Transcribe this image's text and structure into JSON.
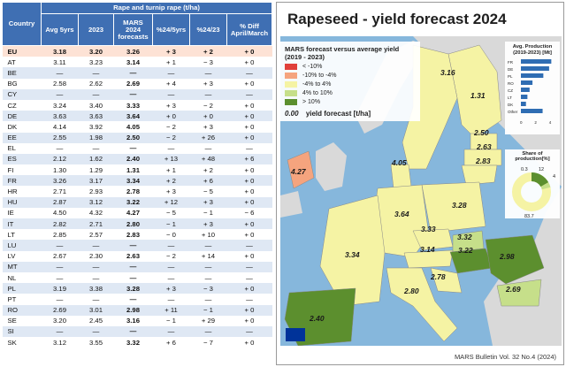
{
  "table": {
    "super_header": "Rape and turnip rape (t/ha)",
    "headers": [
      "Country",
      "Avg 5yrs",
      "2023",
      "MARS\n2024\nforecasts",
      "%24/5yrs",
      "%24/23",
      "% Diff\nApril/March"
    ],
    "rows": [
      [
        "EU",
        "3.18",
        "3.20",
        "3.26",
        "+ 3",
        "+ 2",
        "+ 0"
      ],
      [
        "AT",
        "3.11",
        "3.23",
        "3.14",
        "+ 1",
        "− 3",
        "+ 0"
      ],
      [
        "BE",
        "—",
        "—",
        "—",
        "—",
        "—",
        "—"
      ],
      [
        "BG",
        "2.58",
        "2.62",
        "2.69",
        "+ 4",
        "+ 3",
        "+ 0"
      ],
      [
        "CY",
        "—",
        "—",
        "—",
        "—",
        "—",
        "—"
      ],
      [
        "CZ",
        "3.24",
        "3.40",
        "3.33",
        "+ 3",
        "− 2",
        "+ 0"
      ],
      [
        "DE",
        "3.63",
        "3.63",
        "3.64",
        "+ 0",
        "+ 0",
        "+ 0"
      ],
      [
        "DK",
        "4.14",
        "3.92",
        "4.05",
        "− 2",
        "+ 3",
        "+ 0"
      ],
      [
        "EE",
        "2.55",
        "1.98",
        "2.50",
        "− 2",
        "+ 26",
        "+ 0"
      ],
      [
        "EL",
        "—",
        "—",
        "—",
        "—",
        "—",
        "—"
      ],
      [
        "ES",
        "2.12",
        "1.62",
        "2.40",
        "+ 13",
        "+ 48",
        "+ 6"
      ],
      [
        "FI",
        "1.30",
        "1.29",
        "1.31",
        "+ 1",
        "+ 2",
        "+ 0"
      ],
      [
        "FR",
        "3.26",
        "3.17",
        "3.34",
        "+ 2",
        "+ 6",
        "+ 0"
      ],
      [
        "HR",
        "2.71",
        "2.93",
        "2.78",
        "+ 3",
        "− 5",
        "+ 0"
      ],
      [
        "HU",
        "2.87",
        "3.12",
        "3.22",
        "+ 12",
        "+ 3",
        "+ 0"
      ],
      [
        "IE",
        "4.50",
        "4.32",
        "4.27",
        "− 5",
        "− 1",
        "− 6"
      ],
      [
        "IT",
        "2.82",
        "2.71",
        "2.80",
        "− 1",
        "+ 3",
        "+ 0"
      ],
      [
        "LT",
        "2.85",
        "2.57",
        "2.83",
        "− 0",
        "+ 10",
        "+ 0"
      ],
      [
        "LU",
        "—",
        "—",
        "—",
        "—",
        "—",
        "—"
      ],
      [
        "LV",
        "2.67",
        "2.30",
        "2.63",
        "− 2",
        "+ 14",
        "+ 0"
      ],
      [
        "MT",
        "—",
        "—",
        "—",
        "—",
        "—",
        "—"
      ],
      [
        "NL",
        "—",
        "—",
        "—",
        "—",
        "—",
        "—"
      ],
      [
        "PL",
        "3.19",
        "3.38",
        "3.28",
        "+ 3",
        "− 3",
        "+ 0"
      ],
      [
        "PT",
        "—",
        "—",
        "—",
        "—",
        "—",
        "—"
      ],
      [
        "RO",
        "2.69",
        "3.01",
        "2.98",
        "+ 11",
        "− 1",
        "+ 0"
      ],
      [
        "SE",
        "3.20",
        "2.45",
        "3.16",
        "− 1",
        "+ 29",
        "+ 0"
      ],
      [
        "SI",
        "—",
        "—",
        "—",
        "—",
        "—",
        "—"
      ],
      [
        "SK",
        "3.12",
        "3.55",
        "3.32",
        "+ 6",
        "− 7",
        "+ 0"
      ]
    ]
  },
  "map_panel": {
    "title": "Rapeseed - yield forecast 2024",
    "legend_title": "MARS forecast versus average yield (2019 - 2023)",
    "legend_items": [
      {
        "label": "< -10%",
        "color": "#e0403a"
      },
      {
        "label": "-10% to -4%",
        "color": "#f5a47e"
      },
      {
        "label": "-4% to 4%",
        "color": "#f5f3a4"
      },
      {
        "label": "4% to 10%",
        "color": "#c6df8a"
      },
      {
        "label": "> 10%",
        "color": "#5c8f2e"
      }
    ],
    "yield_legend_value": "0.00",
    "yield_legend_text": "yield forecast [t/ha]",
    "production_title": "Avg. Production (2019-2023) [Mt]",
    "production": {
      "categories": [
        "FR",
        "DE",
        "PL",
        "RO",
        "CZ",
        "LT",
        "DK",
        "Other"
      ],
      "values": [
        4.2,
        3.9,
        3.1,
        1.6,
        1.2,
        0.9,
        0.7,
        3.0
      ],
      "ticks": [
        "0",
        "2",
        "4"
      ],
      "color": "#2f6db3"
    },
    "share_title": "Share of production[%]",
    "share_values": [
      "0.3",
      "12",
      "4",
      "83.7"
    ],
    "country_labels": [
      {
        "code": "FI",
        "value": "3.16"
      },
      {
        "code": "FI2",
        "value": "1.31"
      },
      {
        "code": "EE",
        "value": "2.50"
      },
      {
        "code": "LV",
        "value": "2.63"
      },
      {
        "code": "LT",
        "value": "2.83"
      },
      {
        "code": "DK",
        "value": "4.05"
      },
      {
        "code": "IE",
        "value": "4.27"
      },
      {
        "code": "PL",
        "value": "3.28"
      },
      {
        "code": "DE",
        "value": "3.64"
      },
      {
        "code": "CZ",
        "value": "3.33"
      },
      {
        "code": "SK",
        "value": "3.32"
      },
      {
        "code": "FR",
        "value": "3.34"
      },
      {
        "code": "AT",
        "value": "3.14"
      },
      {
        "code": "HU",
        "value": "3.22"
      },
      {
        "code": "RO",
        "value": "2.98"
      },
      {
        "code": "HR",
        "value": "2.78"
      },
      {
        "code": "BG",
        "value": "2.69"
      },
      {
        "code": "IT",
        "value": "2.80"
      },
      {
        "code": "ES",
        "value": "2.40"
      }
    ],
    "footer": "MARS Bulletin Vol. 32 No.4 (2024)"
  }
}
